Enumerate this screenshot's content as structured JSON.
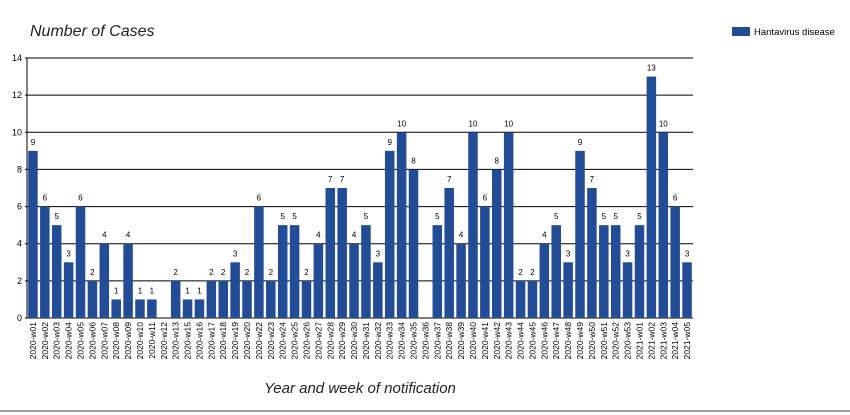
{
  "chart_data": {
    "type": "bar",
    "title": "Number of Cases",
    "x_label": "Year and week of notification",
    "color": "#234c96",
    "series_name": "Hantavirus disease",
    "categories": [
      "2020-w01",
      "2020-w02",
      "2020-w03",
      "2020-w04",
      "2020-w05",
      "2020-w06",
      "2020-w07",
      "2020-w08",
      "2020-w09",
      "2020-w10",
      "2020-w11",
      "2020-w12",
      "2020-w13",
      "2020-w15",
      "2020-w16",
      "2020-w17",
      "2020-w18",
      "2020-w19",
      "2020-w20",
      "2020-w22",
      "2020-w23",
      "2020-w24",
      "2020-w25",
      "2020-w26",
      "2020-w27",
      "2020-w28",
      "2020-w29",
      "2020-w30",
      "2020-w31",
      "2020-w32",
      "2020-w33",
      "2020-w34",
      "2020-w35",
      "2020-w36",
      "2020-w37",
      "2020-w38",
      "2020-w39",
      "2020-w40",
      "2020-w41",
      "2020-w42",
      "2020-w43",
      "2020-w44",
      "2020-w45",
      "2020-w46",
      "2020-w47",
      "2020-w48",
      "2020-w49",
      "2020-w50",
      "2020-w51",
      "2020-w52",
      "2020-w53",
      "2021-w01",
      "2021-w02",
      "2021-w03",
      "2021-w04",
      "2021-w05"
    ],
    "values": [
      9,
      6,
      5,
      3,
      6,
      2,
      4,
      1,
      4,
      1,
      1,
      null,
      2,
      1,
      1,
      2,
      2,
      3,
      2,
      6,
      2,
      5,
      5,
      2,
      4,
      7,
      7,
      4,
      5,
      3,
      9,
      10,
      8,
      null,
      5,
      7,
      4,
      10,
      6,
      8,
      10,
      2,
      2,
      4,
      5,
      3,
      9,
      7,
      5,
      5,
      3,
      5,
      13,
      10,
      6,
      3
    ],
    "ylim": [
      0,
      14
    ],
    "yticks": [
      0,
      2,
      4,
      6,
      8,
      10,
      12,
      14
    ],
    "grid": true,
    "legend": "top-right"
  }
}
